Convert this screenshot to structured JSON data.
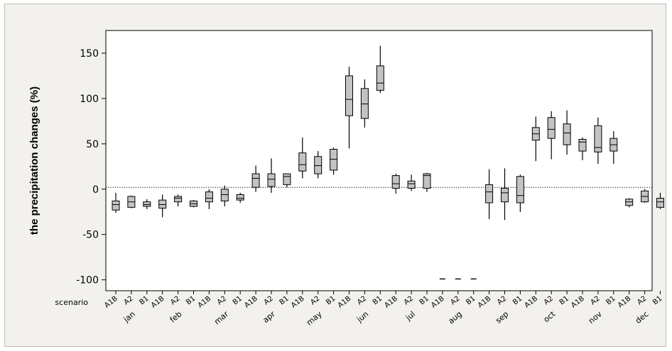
{
  "chart_data": {
    "type": "boxplot",
    "ylabel": "the precipitation changes (%)",
    "x_row_label": "scenario",
    "scenarios": [
      "A1B",
      "A2",
      "B1"
    ],
    "months": [
      "jan",
      "feb",
      "mar",
      "apr",
      "may",
      "jun",
      "jul",
      "aug",
      "sep",
      "oct",
      "nov",
      "dec"
    ],
    "month_tick_labels": [
      "jan",
      "feb",
      "mar",
      "apr",
      "may",
      "jun",
      "jul",
      "aug",
      "sep",
      "oct",
      "nov",
      "dec"
    ],
    "yticks": [
      150,
      100,
      50,
      0,
      -50,
      -100
    ],
    "ylim": [
      -112,
      175
    ],
    "reference_line": 2,
    "grid": false,
    "boxes": [
      {
        "month": "jan",
        "scenario": "A1B",
        "min": -26,
        "q1": -23,
        "median": -17,
        "q3": -13,
        "max": -4
      },
      {
        "month": "jan",
        "scenario": "A2",
        "min": -21,
        "q1": -20,
        "median": -14,
        "q3": -8,
        "max": -7
      },
      {
        "month": "jan",
        "scenario": "B1",
        "min": -22,
        "q1": -19,
        "median": -17,
        "q3": -14,
        "max": -11
      },
      {
        "month": "feb",
        "scenario": "A1B",
        "min": -31,
        "q1": -21,
        "median": -17,
        "q3": -12,
        "max": -6
      },
      {
        "month": "feb",
        "scenario": "A2",
        "min": -19,
        "q1": -14,
        "median": -10,
        "q3": -8,
        "max": -6
      },
      {
        "month": "feb",
        "scenario": "B1",
        "min": -20,
        "q1": -19,
        "median": -16,
        "q3": -13,
        "max": -12
      },
      {
        "month": "mar",
        "scenario": "A1B",
        "min": -22,
        "q1": -14,
        "median": -10,
        "q3": -3,
        "max": 0
      },
      {
        "month": "mar",
        "scenario": "A2",
        "min": -19,
        "q1": -13,
        "median": -6,
        "q3": 0,
        "max": 4
      },
      {
        "month": "mar",
        "scenario": "B1",
        "min": -15,
        "q1": -12,
        "median": -10,
        "q3": -6,
        "max": -4
      },
      {
        "month": "apr",
        "scenario": "A1B",
        "min": -3,
        "q1": 2,
        "median": 12,
        "q3": 17,
        "max": 26
      },
      {
        "month": "apr",
        "scenario": "A2",
        "min": -4,
        "q1": 3,
        "median": 11,
        "q3": 17,
        "max": 34
      },
      {
        "month": "apr",
        "scenario": "B1",
        "min": 2,
        "q1": 5,
        "median": 14,
        "q3": 17,
        "max": 17
      },
      {
        "month": "may",
        "scenario": "A1B",
        "min": 12,
        "q1": 20,
        "median": 27,
        "q3": 40,
        "max": 57
      },
      {
        "month": "may",
        "scenario": "A2",
        "min": 12,
        "q1": 17,
        "median": 26,
        "q3": 36,
        "max": 42
      },
      {
        "month": "may",
        "scenario": "B1",
        "min": 16,
        "q1": 21,
        "median": 33,
        "q3": 44,
        "max": 46
      },
      {
        "month": "jun",
        "scenario": "A1B",
        "min": 45,
        "q1": 81,
        "median": 99,
        "q3": 125,
        "max": 135
      },
      {
        "month": "jun",
        "scenario": "A2",
        "min": 68,
        "q1": 78,
        "median": 94,
        "q3": 111,
        "max": 121
      },
      {
        "month": "jun",
        "scenario": "B1",
        "min": 106,
        "q1": 109,
        "median": 117,
        "q3": 136,
        "max": 158
      },
      {
        "month": "jul",
        "scenario": "A1B",
        "min": -5,
        "q1": 1,
        "median": 6,
        "q3": 15,
        "max": 17
      },
      {
        "month": "jul",
        "scenario": "A2",
        "min": -2,
        "q1": 1,
        "median": 6,
        "q3": 9,
        "max": 16
      },
      {
        "month": "jul",
        "scenario": "B1",
        "min": -3,
        "q1": 1,
        "median": 15,
        "q3": 17,
        "max": 18
      },
      {
        "month": "aug",
        "scenario": "A1B",
        "dash": -99
      },
      {
        "month": "aug",
        "scenario": "A2",
        "dash": -99
      },
      {
        "month": "aug",
        "scenario": "B1",
        "dash": -99
      },
      {
        "month": "sep",
        "scenario": "A1B",
        "min": -33,
        "q1": -15,
        "median": -3,
        "q3": 5,
        "max": 22
      },
      {
        "month": "sep",
        "scenario": "A2",
        "min": -34,
        "q1": -14,
        "median": -4,
        "q3": 1,
        "max": 23
      },
      {
        "month": "sep",
        "scenario": "B1",
        "min": -25,
        "q1": -15,
        "median": -7,
        "q3": 14,
        "max": 16
      },
      {
        "month": "oct",
        "scenario": "A1B",
        "min": 31,
        "q1": 54,
        "median": 61,
        "q3": 68,
        "max": 80
      },
      {
        "month": "oct",
        "scenario": "A2",
        "min": 33,
        "q1": 56,
        "median": 66,
        "q3": 79,
        "max": 86
      },
      {
        "month": "oct",
        "scenario": "B1",
        "min": 38,
        "q1": 49,
        "median": 62,
        "q3": 72,
        "max": 87
      },
      {
        "month": "nov",
        "scenario": "A1B",
        "min": 32,
        "q1": 42,
        "median": 52,
        "q3": 55,
        "max": 57
      },
      {
        "month": "nov",
        "scenario": "A2",
        "min": 28,
        "q1": 41,
        "median": 46,
        "q3": 70,
        "max": 79
      },
      {
        "month": "nov",
        "scenario": "B1",
        "min": 28,
        "q1": 42,
        "median": 49,
        "q3": 56,
        "max": 64
      },
      {
        "month": "dec",
        "scenario": "A1B",
        "min": -20,
        "q1": -18,
        "median": -14,
        "q3": -11,
        "max": -10
      },
      {
        "month": "dec",
        "scenario": "A2",
        "min": -15,
        "q1": -14,
        "median": -8,
        "q3": -2,
        "max": 0
      },
      {
        "month": "dec",
        "scenario": "B1",
        "min": -22,
        "q1": -20,
        "median": -14,
        "q3": -10,
        "max": -4
      }
    ]
  },
  "colors": {
    "background": "#f3f1ee",
    "plot_area": "#ffffff",
    "box_fill": "#c3c3c3",
    "line": "#000000"
  }
}
